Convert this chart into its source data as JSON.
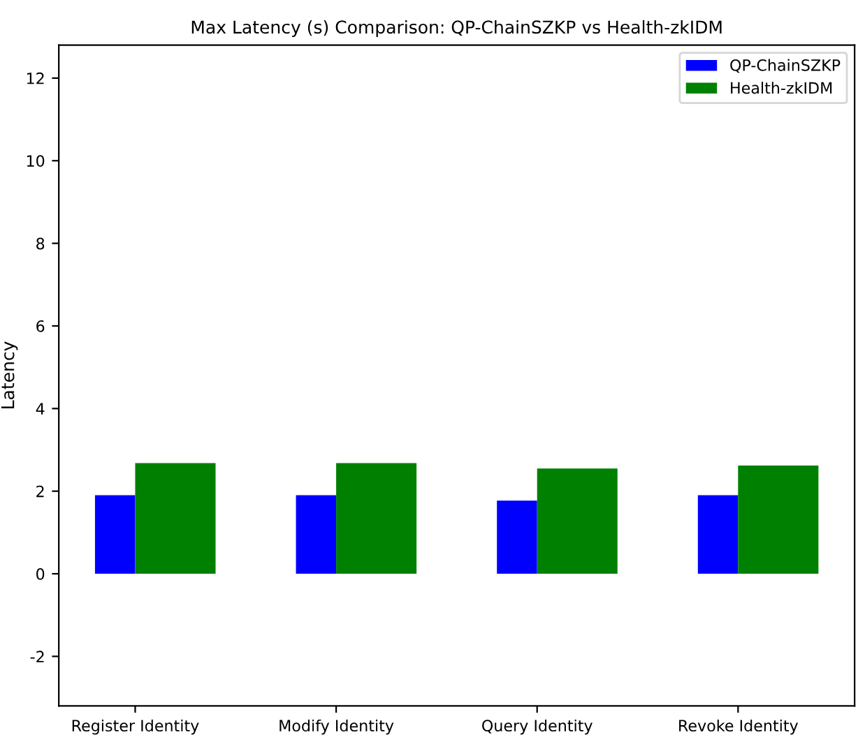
{
  "chart_data": {
    "type": "bar",
    "title": "Max Latency (s) Comparison: QP-ChainSZKP vs Health-zkIDM",
    "ylabel": "Latency",
    "categories": [
      "Register Identity",
      "Modify Identity",
      "Query Identity",
      "Revoke Identity"
    ],
    "series": [
      {
        "name": "QP-ChainSZKP",
        "color": "#0000ff",
        "values": [
          1.9,
          1.9,
          1.77,
          1.9
        ]
      },
      {
        "name": "Health-zkIDM",
        "color": "#008000",
        "values": [
          2.68,
          2.68,
          2.55,
          2.62
        ]
      }
    ],
    "ylim": [
      -3.2,
      12.8
    ],
    "yticks": [
      -2,
      0,
      2,
      4,
      6,
      8,
      10,
      12
    ],
    "legend": "top right",
    "grid": false
  }
}
